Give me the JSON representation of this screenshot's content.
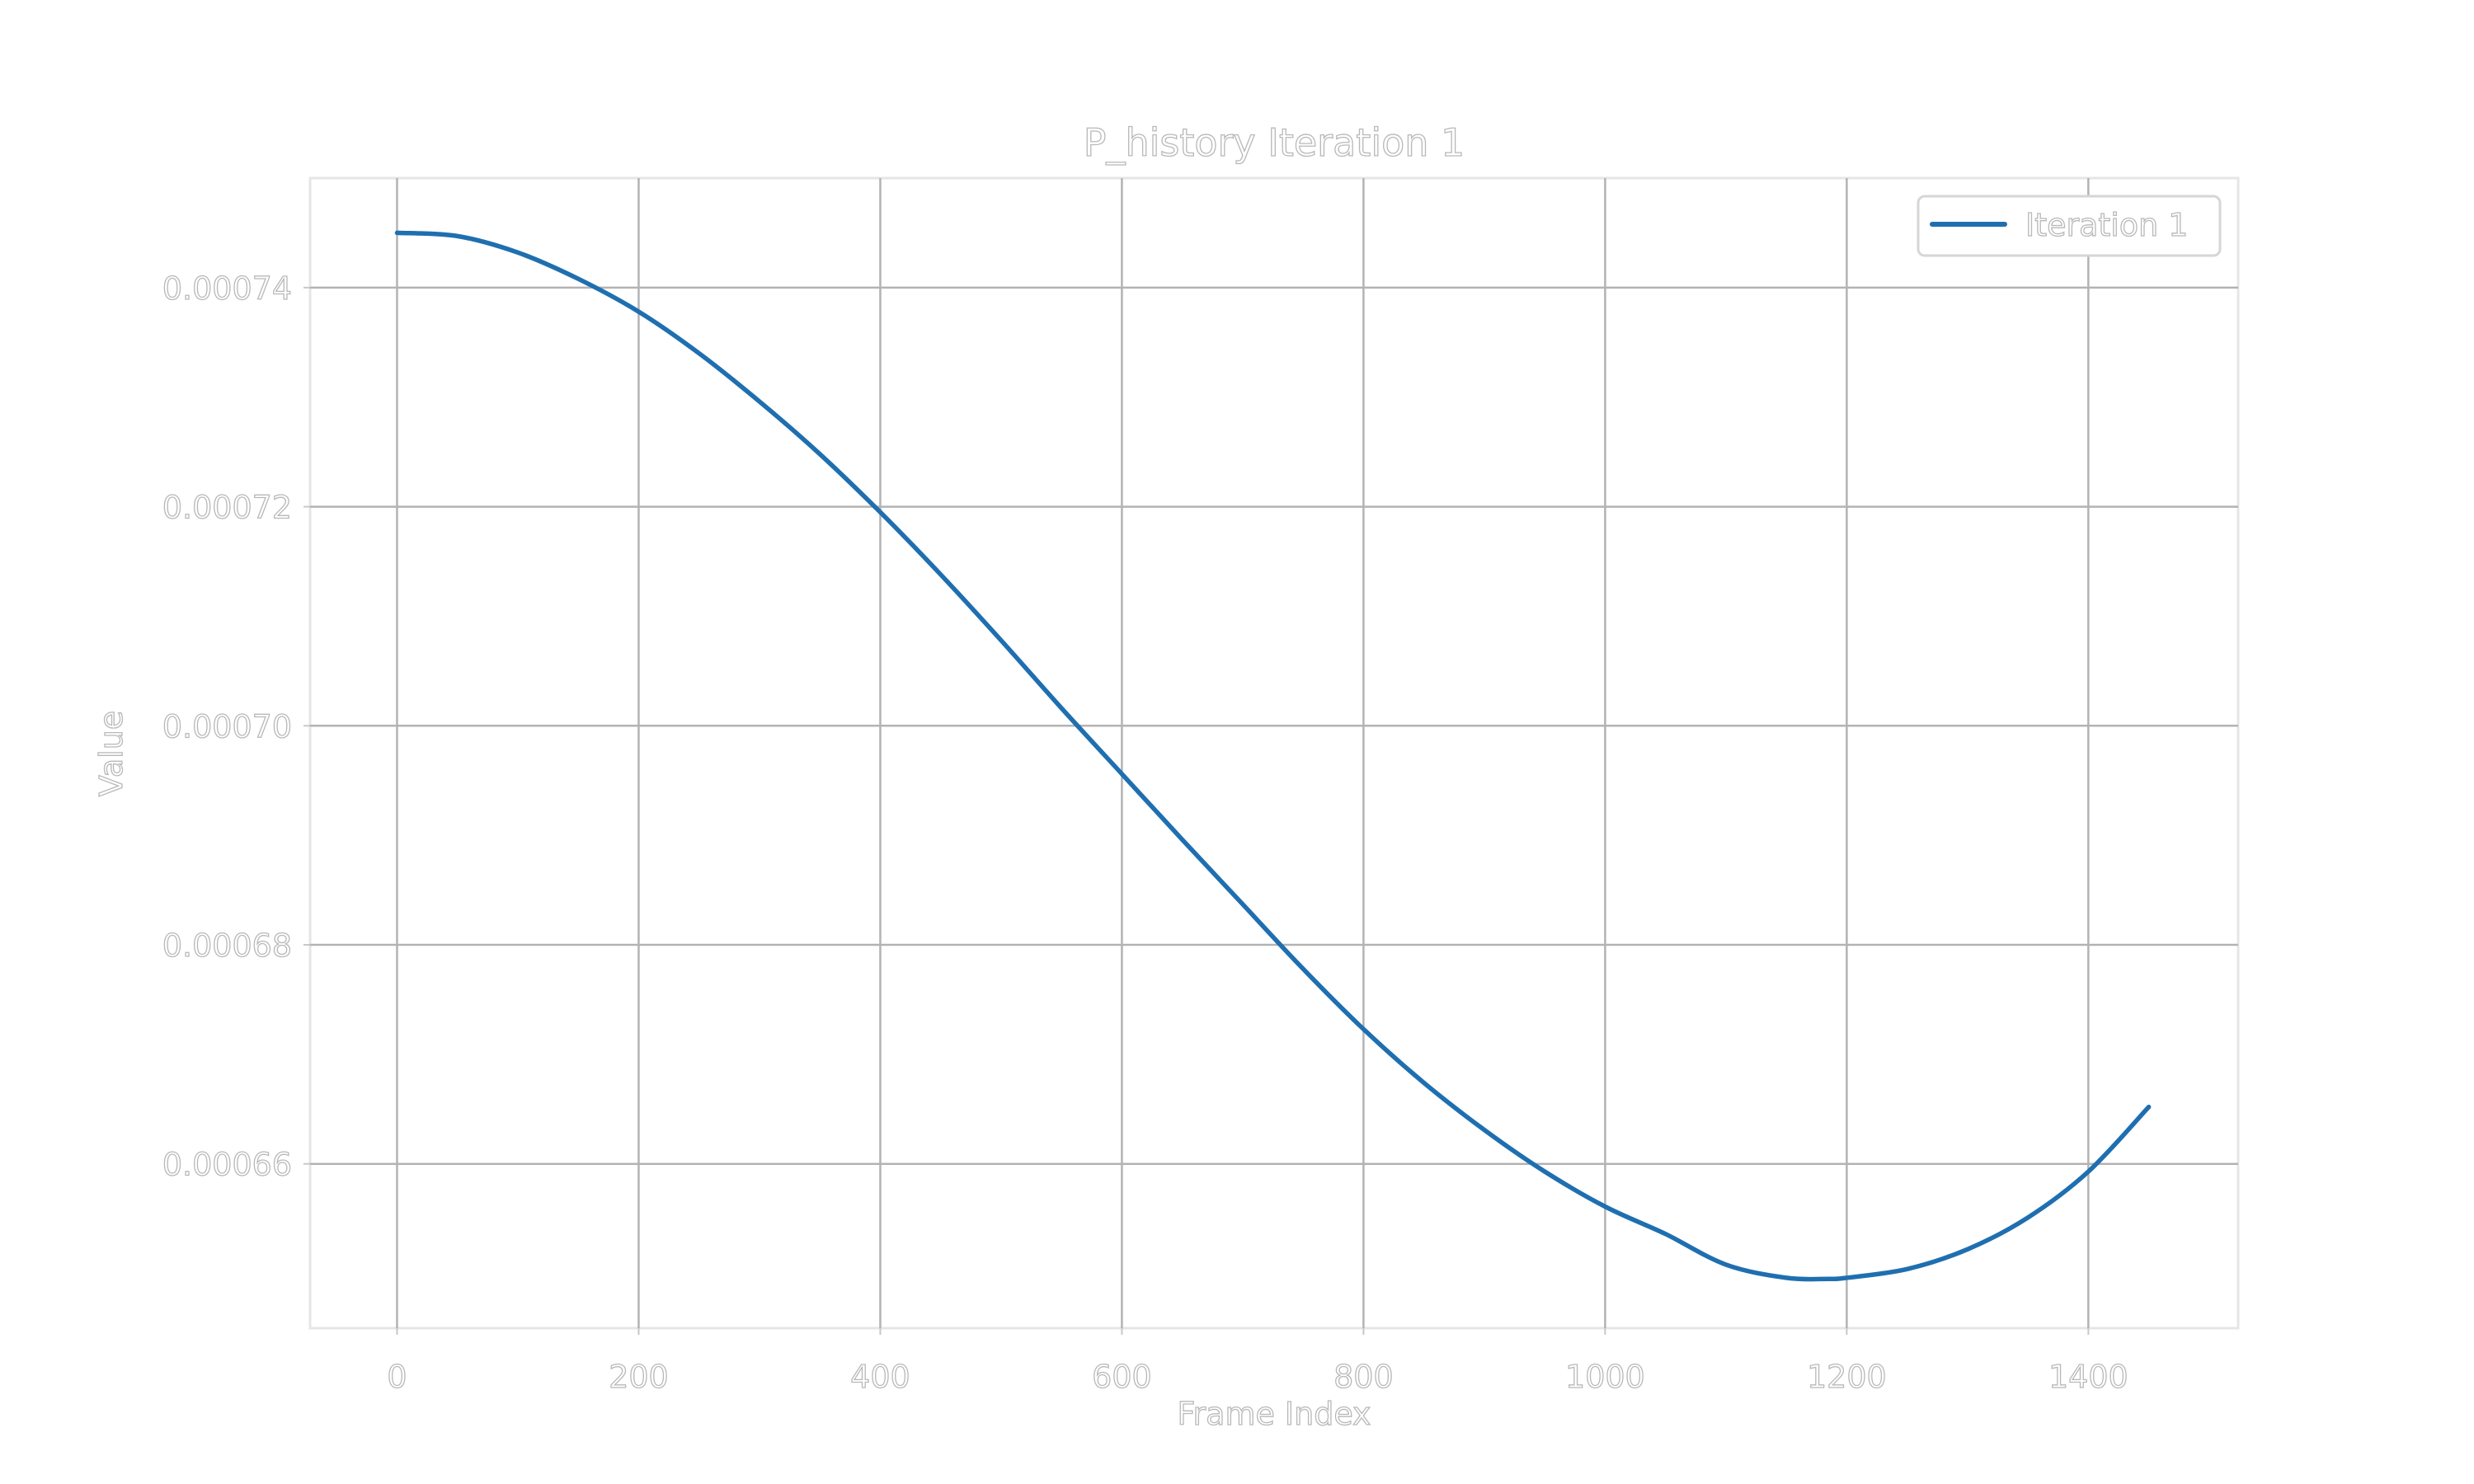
{
  "chart_data": {
    "type": "line",
    "title": "P_history Iteration 1",
    "xlabel": "Frame Index",
    "ylabel": "Value",
    "xlim": [
      -72,
      1524
    ],
    "ylim": [
      0.000645,
      0.00075
    ],
    "x_ticks": [
      0,
      200,
      400,
      600,
      800,
      1000,
      1200,
      1400
    ],
    "x_tick_labels": [
      "0",
      "200",
      "400",
      "600",
      "800",
      "1000",
      "1200",
      "1400"
    ],
    "y_ticks": [
      0.00066,
      0.00068,
      0.0007,
      0.00072,
      0.00074
    ],
    "y_tick_labels": [
      "0.00066",
      "0.00068",
      "0.00070",
      "0.00072",
      "0.00074"
    ],
    "grid": true,
    "legend_position": "top-right",
    "series": [
      {
        "name": "Iteration 1",
        "color": "#1f6fb0",
        "x": [
          0,
          50,
          100,
          150,
          200,
          250,
          300,
          350,
          400,
          450,
          500,
          550,
          600,
          650,
          700,
          750,
          800,
          850,
          900,
          950,
          1000,
          1050,
          1100,
          1150,
          1185,
          1200,
          1250,
          1300,
          1350,
          1400,
          1450
        ],
        "y": [
          0.000745,
          0.0007447,
          0.0007432,
          0.0007408,
          0.0007378,
          0.000734,
          0.0007296,
          0.0007248,
          0.0007195,
          0.0007138,
          0.0007078,
          0.0007016,
          0.0006956,
          0.0006896,
          0.0006837,
          0.0006778,
          0.0006723,
          0.0006674,
          0.0006631,
          0.0006593,
          0.0006561,
          0.0006536,
          0.0006508,
          0.0006496,
          0.0006495,
          0.0006496,
          0.0006504,
          0.0006522,
          0.0006551,
          0.0006593,
          0.0006652
        ]
      }
    ]
  }
}
